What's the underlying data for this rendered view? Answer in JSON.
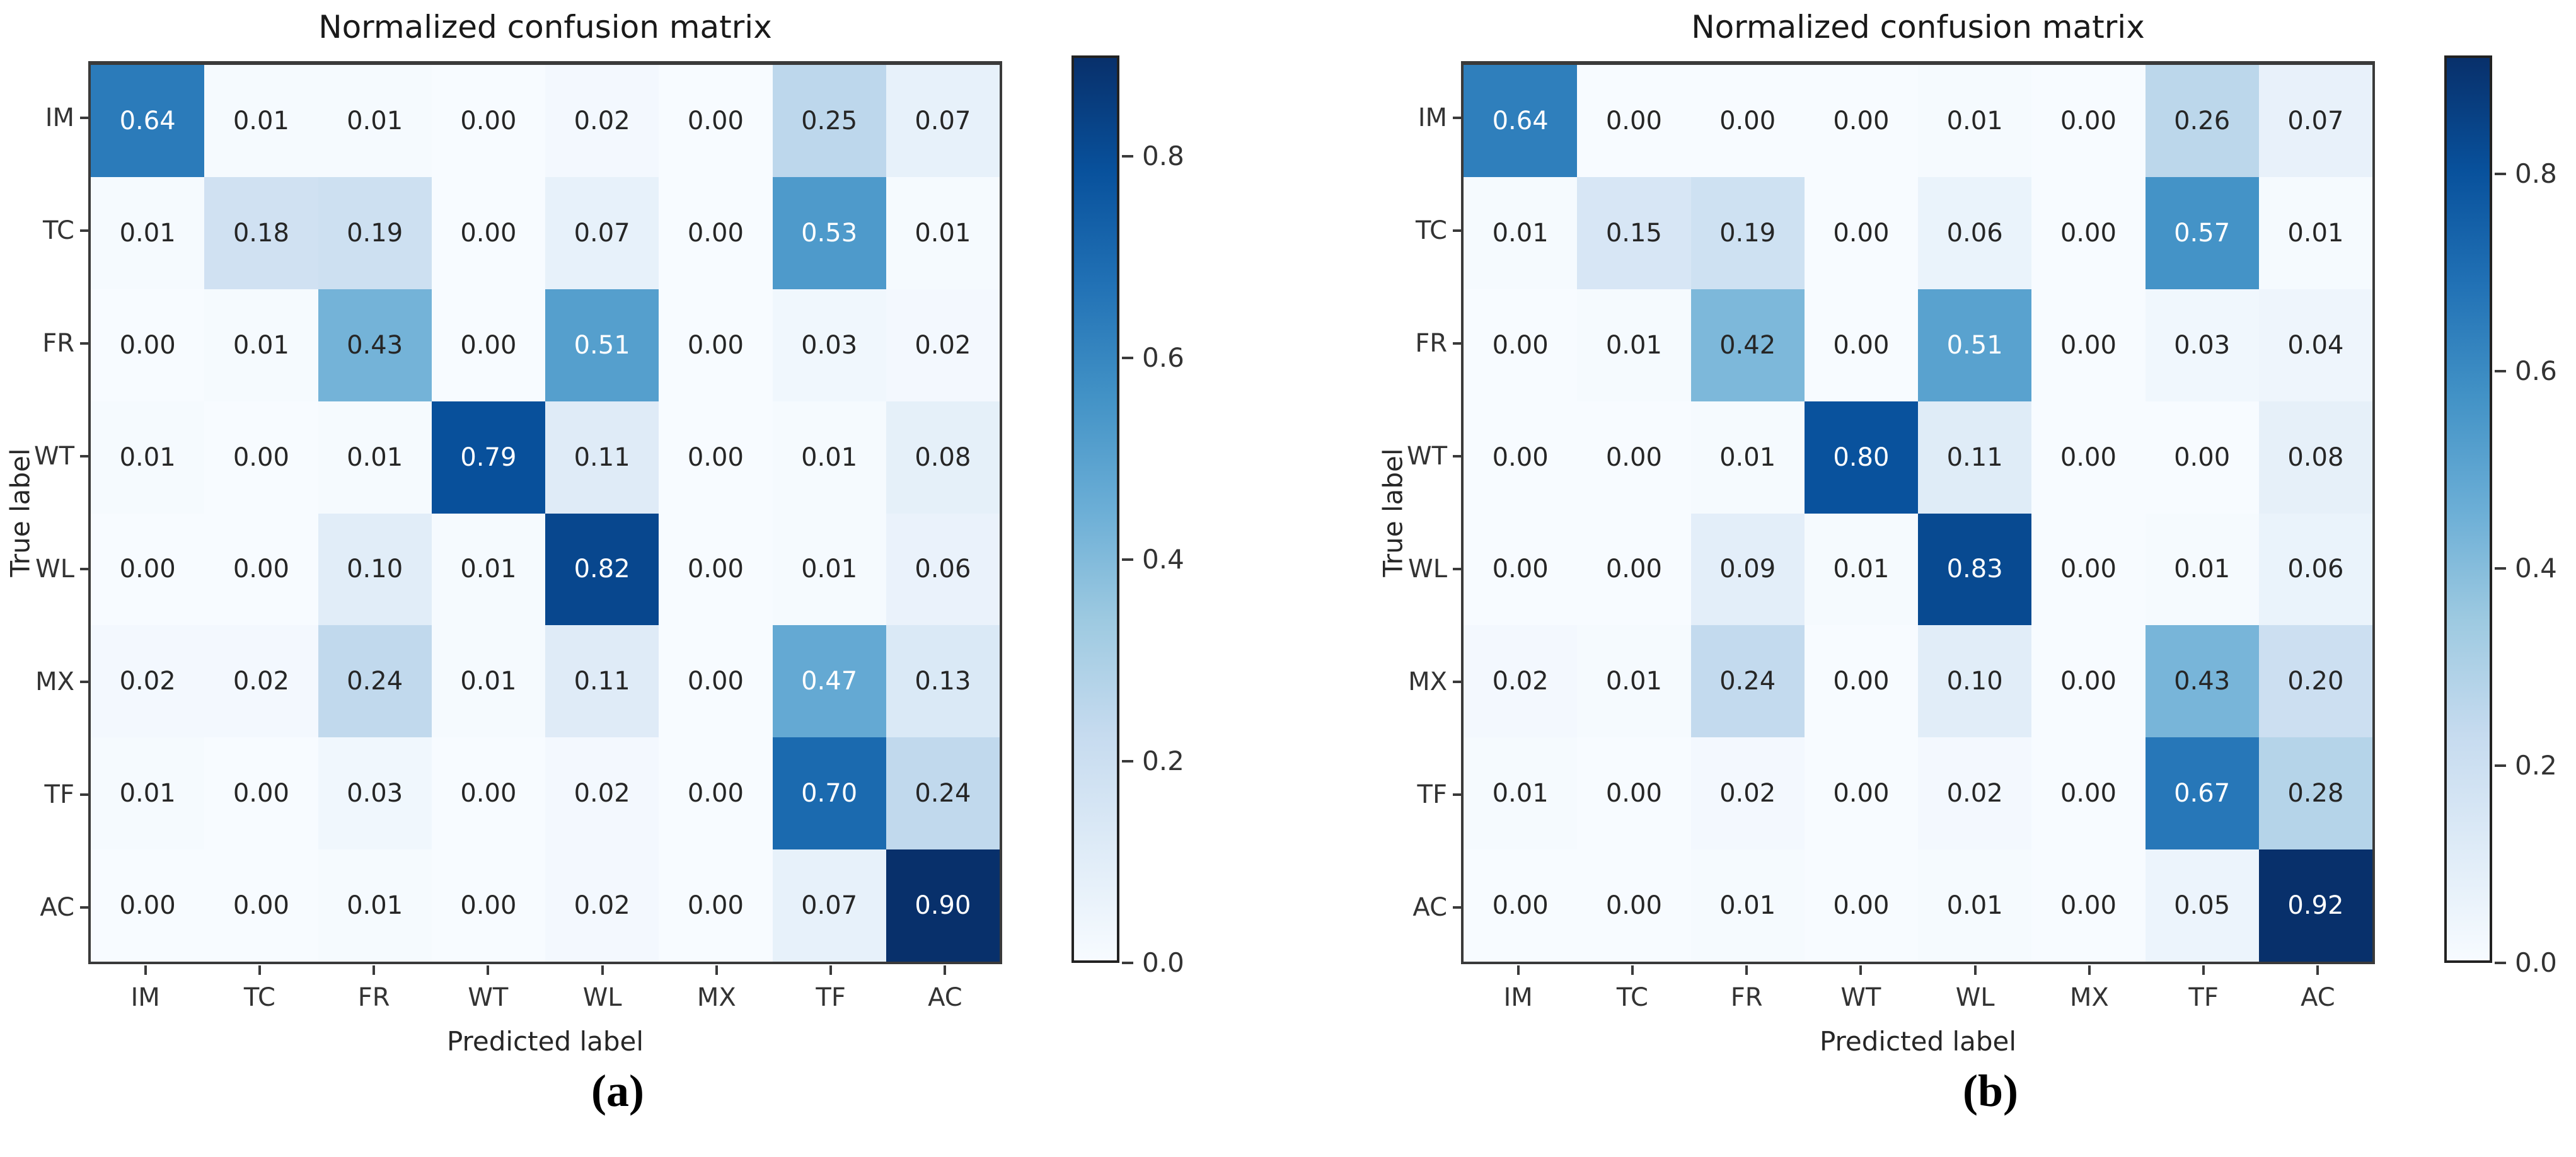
{
  "figure_type": "side-by-side normalized confusion matrices",
  "chart_data": [
    {
      "type": "heatmap",
      "title": "Normalized confusion matrix",
      "xlabel": "Predicted label",
      "ylabel": "True label",
      "caption": "(a)",
      "x_tick_labels": [
        "IM",
        "TC",
        "FR",
        "WT",
        "WL",
        "MX",
        "TF",
        "AC"
      ],
      "y_tick_labels": [
        "IM",
        "TC",
        "FR",
        "WT",
        "WL",
        "MX",
        "TF",
        "AC"
      ],
      "values": [
        [
          0.64,
          0.01,
          0.01,
          0.0,
          0.02,
          0.0,
          0.25,
          0.07
        ],
        [
          0.01,
          0.18,
          0.19,
          0.0,
          0.07,
          0.0,
          0.53,
          0.01
        ],
        [
          0.0,
          0.01,
          0.43,
          0.0,
          0.51,
          0.0,
          0.03,
          0.02
        ],
        [
          0.01,
          0.0,
          0.01,
          0.79,
          0.11,
          0.0,
          0.01,
          0.08
        ],
        [
          0.0,
          0.0,
          0.1,
          0.01,
          0.82,
          0.0,
          0.01,
          0.06
        ],
        [
          0.02,
          0.02,
          0.24,
          0.01,
          0.11,
          0.0,
          0.47,
          0.13
        ],
        [
          0.01,
          0.0,
          0.03,
          0.0,
          0.02,
          0.0,
          0.7,
          0.24
        ],
        [
          0.0,
          0.0,
          0.01,
          0.0,
          0.02,
          0.0,
          0.07,
          0.9
        ]
      ],
      "vmin": 0.0,
      "vmax": 0.9,
      "colorbar_tick_labels": [
        "0.8",
        "0.6",
        "0.4",
        "0.2",
        "0.0"
      ],
      "colorbar_tick_values": [
        0.8,
        0.6,
        0.4,
        0.2,
        0.0
      ],
      "colormap": "Blues",
      "colorbar_position": "right",
      "grid": false
    },
    {
      "type": "heatmap",
      "title": "Normalized confusion matrix",
      "xlabel": "Predicted label",
      "ylabel": "True label",
      "caption": "(b)",
      "x_tick_labels": [
        "IM",
        "TC",
        "FR",
        "WT",
        "WL",
        "MX",
        "TF",
        "AC"
      ],
      "y_tick_labels": [
        "IM",
        "TC",
        "FR",
        "WT",
        "WL",
        "MX",
        "TF",
        "AC"
      ],
      "values": [
        [
          0.64,
          0.0,
          0.0,
          0.0,
          0.01,
          0.0,
          0.26,
          0.07
        ],
        [
          0.01,
          0.15,
          0.19,
          0.0,
          0.06,
          0.0,
          0.57,
          0.01
        ],
        [
          0.0,
          0.01,
          0.42,
          0.0,
          0.51,
          0.0,
          0.03,
          0.04
        ],
        [
          0.0,
          0.0,
          0.01,
          0.8,
          0.11,
          0.0,
          0.0,
          0.08
        ],
        [
          0.0,
          0.0,
          0.09,
          0.01,
          0.83,
          0.0,
          0.01,
          0.06
        ],
        [
          0.02,
          0.01,
          0.24,
          0.0,
          0.1,
          0.0,
          0.43,
          0.2
        ],
        [
          0.01,
          0.0,
          0.02,
          0.0,
          0.02,
          0.0,
          0.67,
          0.28
        ],
        [
          0.0,
          0.0,
          0.01,
          0.0,
          0.01,
          0.0,
          0.05,
          0.92
        ]
      ],
      "vmin": 0.0,
      "vmax": 0.92,
      "colorbar_tick_labels": [
        "0.8",
        "0.6",
        "0.4",
        "0.2",
        "0.0"
      ],
      "colorbar_tick_values": [
        0.8,
        0.6,
        0.4,
        0.2,
        0.0
      ],
      "colormap": "Blues",
      "colorbar_position": "right",
      "grid": false
    }
  ],
  "colors": {
    "background": "#ffffff",
    "spine": "#3a3a3a",
    "tick_text": "#333333",
    "cell_text_dark": "#262626",
    "cell_text_light": "#ffffff",
    "cmap_anchors": [
      [
        0.0,
        247,
        251,
        255
      ],
      [
        0.125,
        222,
        235,
        247
      ],
      [
        0.25,
        198,
        219,
        239
      ],
      [
        0.375,
        158,
        202,
        225
      ],
      [
        0.5,
        107,
        174,
        214
      ],
      [
        0.625,
        66,
        146,
        198
      ],
      [
        0.75,
        33,
        113,
        181
      ],
      [
        0.875,
        8,
        81,
        156
      ],
      [
        1.0,
        8,
        48,
        107
      ]
    ]
  }
}
